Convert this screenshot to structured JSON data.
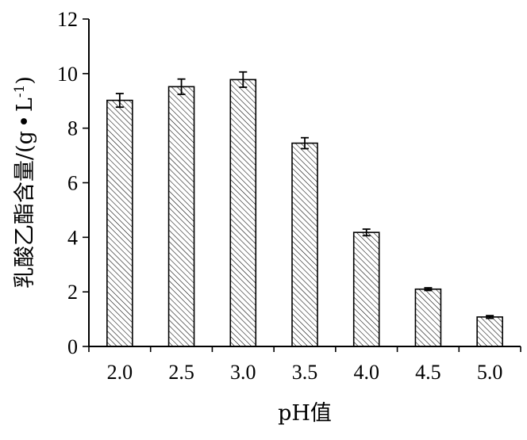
{
  "chart_data": {
    "type": "bar",
    "title": "",
    "xlabel": "pH值",
    "ylabel_main": "乳酸乙酯含量/",
    "ylabel_unit_open": "(g",
    "ylabel_unit_dot": "•",
    "ylabel_unit_L": "L",
    "ylabel_unit_exp": "-1",
    "ylabel_unit_close": ")",
    "categories": [
      "2.0",
      "2.5",
      "3.0",
      "3.5",
      "4.0",
      "4.5",
      "5.0"
    ],
    "values": [
      9.02,
      9.52,
      9.78,
      7.45,
      4.18,
      2.1,
      1.08
    ],
    "errors": [
      0.25,
      0.28,
      0.28,
      0.2,
      0.12,
      0.05,
      0.05
    ],
    "ylim": [
      0,
      12
    ],
    "yticks": [
      "0",
      "2",
      "4",
      "6",
      "8",
      "10",
      "12"
    ],
    "grid": false,
    "bar_fill": "hatched",
    "colors": {
      "bar_stroke": "#000000",
      "hatch": "#000000",
      "background": "#ffffff"
    }
  }
}
